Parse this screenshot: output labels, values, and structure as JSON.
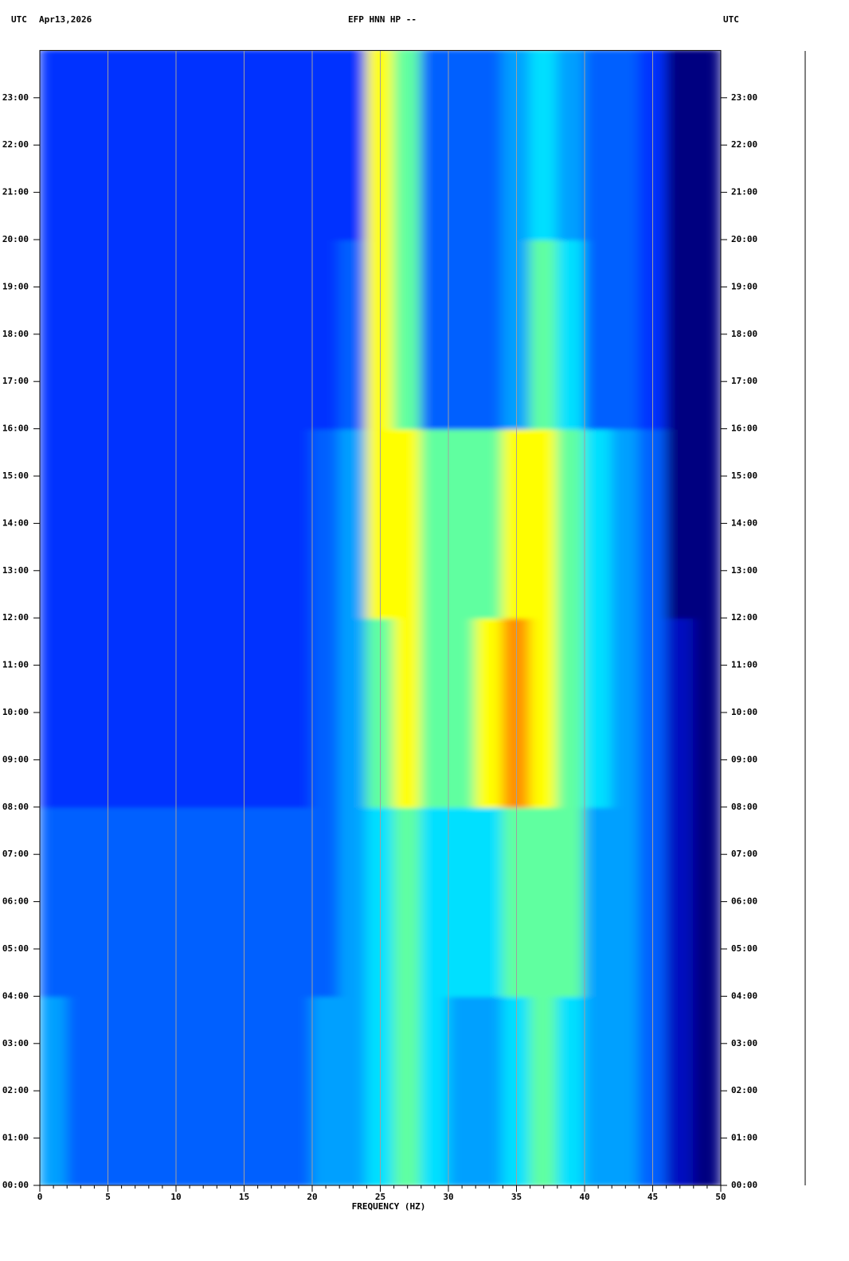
{
  "chart_data": {
    "type": "heatmap",
    "header_left_zone": "UTC",
    "header_date": "Apr13,2026",
    "title": "EFP HNN HP --",
    "header_right_zone": "UTC",
    "xlabel": "FREQUENCY (HZ)",
    "xlim": [
      0,
      50
    ],
    "xticks": [
      0,
      5,
      10,
      15,
      20,
      25,
      30,
      35,
      40,
      45,
      50
    ],
    "xminorticks": [
      0,
      1,
      2,
      3,
      4,
      5,
      6,
      7,
      8,
      9,
      10,
      11,
      12,
      13,
      14,
      15,
      16,
      17,
      18,
      19,
      20,
      21,
      22,
      23,
      24,
      25,
      26,
      27,
      28,
      29,
      30,
      31,
      32,
      33,
      34,
      35,
      36,
      37,
      38,
      39,
      40,
      41,
      42,
      43,
      44,
      45,
      46,
      47,
      48,
      49,
      50
    ],
    "ylim": [
      0,
      24
    ],
    "yticks": [
      {
        "value": 0,
        "label": "00:00"
      },
      {
        "value": 1,
        "label": "01:00"
      },
      {
        "value": 2,
        "label": "02:00"
      },
      {
        "value": 3,
        "label": "03:00"
      },
      {
        "value": 4,
        "label": "04:00"
      },
      {
        "value": 5,
        "label": "05:00"
      },
      {
        "value": 6,
        "label": "06:00"
      },
      {
        "value": 7,
        "label": "07:00"
      },
      {
        "value": 8,
        "label": "08:00"
      },
      {
        "value": 9,
        "label": "09:00"
      },
      {
        "value": 10,
        "label": "10:00"
      },
      {
        "value": 11,
        "label": "11:00"
      },
      {
        "value": 12,
        "label": "12:00"
      },
      {
        "value": 13,
        "label": "13:00"
      },
      {
        "value": 14,
        "label": "14:00"
      },
      {
        "value": 15,
        "label": "15:00"
      },
      {
        "value": 16,
        "label": "16:00"
      },
      {
        "value": 17,
        "label": "17:00"
      },
      {
        "value": 18,
        "label": "18:00"
      },
      {
        "value": 19,
        "label": "19:00"
      },
      {
        "value": 20,
        "label": "20:00"
      },
      {
        "value": 21,
        "label": "21:00"
      },
      {
        "value": 22,
        "label": "22:00"
      },
      {
        "value": 23,
        "label": "23:00"
      }
    ],
    "grid": true,
    "colorscale": [
      "#000080",
      "#0010c0",
      "#0030ff",
      "#0060ff",
      "#00a0ff",
      "#00e0ff",
      "#60ffa0",
      "#ffff00",
      "#ff9000",
      "#e00000"
    ],
    "x_bins": [
      0,
      2,
      4,
      6,
      8,
      10,
      12,
      14,
      16,
      18,
      20,
      22,
      24,
      26,
      28,
      30,
      32,
      34,
      36,
      38,
      40,
      42,
      44,
      46,
      48,
      50
    ],
    "y_bins": [
      0,
      4,
      8,
      12,
      16,
      20,
      24
    ],
    "values": [
      [
        4,
        3,
        3,
        3,
        3,
        3,
        3,
        3,
        3,
        3,
        4,
        4,
        5,
        6,
        5,
        4,
        4,
        5,
        6,
        5,
        4,
        4,
        3,
        1,
        0
      ],
      [
        3,
        3,
        3,
        3,
        3,
        3,
        3,
        3,
        3,
        3,
        3,
        4,
        5,
        6,
        5,
        5,
        5,
        6,
        6,
        6,
        4,
        4,
        3,
        1,
        0
      ],
      [
        2,
        2,
        2,
        2,
        2,
        2,
        2,
        2,
        2,
        2,
        3,
        4,
        6,
        7,
        6,
        6,
        7,
        8,
        7,
        6,
        5,
        4,
        3,
        1,
        0
      ],
      [
        2,
        2,
        2,
        2,
        2,
        2,
        2,
        2,
        2,
        2,
        3,
        4,
        7,
        7,
        6,
        6,
        6,
        7,
        7,
        6,
        5,
        4,
        3,
        0,
        0
      ],
      [
        2,
        2,
        2,
        2,
        2,
        2,
        2,
        2,
        2,
        2,
        2,
        3,
        7,
        6,
        3,
        3,
        3,
        4,
        6,
        5,
        3,
        3,
        2,
        0,
        0
      ],
      [
        2,
        2,
        2,
        2,
        2,
        2,
        2,
        2,
        2,
        2,
        2,
        2,
        7,
        6,
        3,
        3,
        3,
        4,
        5,
        4,
        3,
        3,
        2,
        0,
        0
      ]
    ]
  }
}
